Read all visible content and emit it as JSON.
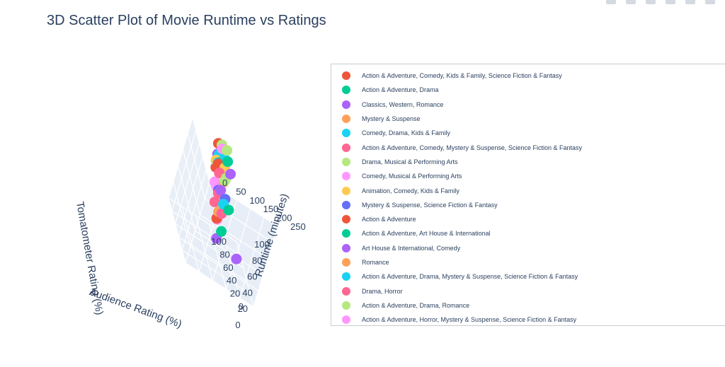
{
  "chart_data": {
    "type": "scatter",
    "subtype": "scatter3d",
    "title": "3D Scatter Plot of Movie Runtime vs Ratings",
    "axes": {
      "x": {
        "label": "Audience Rating (%)",
        "ticks": [
          "0",
          "20",
          "40",
          "60",
          "80",
          "100"
        ],
        "range": [
          0,
          100
        ]
      },
      "y": {
        "label": "Runtime (minutes)",
        "ticks": [
          "0",
          "50",
          "100",
          "150",
          "200",
          "250"
        ],
        "range": [
          0,
          250
        ]
      },
      "z": {
        "label": "Tomatometer Rating (%)",
        "ticks": [
          "0",
          "20",
          "40",
          "60",
          "80",
          "100"
        ],
        "range": [
          0,
          100
        ]
      }
    },
    "grid": true,
    "legend_position": "right",
    "series": [
      {
        "name": "Action & Adventure, Comedy, Kids & Family, Science Fiction & Fantasy",
        "color": "#EF553B"
      },
      {
        "name": "Action & Adventure, Drama",
        "color": "#00CC96"
      },
      {
        "name": "Classics, Western, Romance",
        "color": "#AB63FA"
      },
      {
        "name": "Mystery & Suspense",
        "color": "#FFA15A"
      },
      {
        "name": "Comedy, Drama, Kids & Family",
        "color": "#19D3F3"
      },
      {
        "name": "Action & Adventure, Comedy, Mystery & Suspense, Science Fiction & Fantasy",
        "color": "#FF6692"
      },
      {
        "name": "Drama, Musical & Performing Arts",
        "color": "#B6E880"
      },
      {
        "name": "Comedy, Musical & Performing Arts",
        "color": "#FF97FF"
      },
      {
        "name": "Animation, Comedy, Kids & Family",
        "color": "#FECB52"
      },
      {
        "name": "Mystery & Suspense, Science Fiction & Fantasy",
        "color": "#636EFA"
      },
      {
        "name": "Action & Adventure",
        "color": "#EF553B"
      },
      {
        "name": "Action & Adventure, Art House & International",
        "color": "#00CC96"
      },
      {
        "name": "Art House & International, Comedy",
        "color": "#AB63FA"
      },
      {
        "name": "Romance",
        "color": "#FFA15A"
      },
      {
        "name": "Action & Adventure, Drama, Mystery & Suspense, Science Fiction & Fantasy",
        "color": "#19D3F3"
      },
      {
        "name": "Drama, Horror",
        "color": "#FF6692"
      },
      {
        "name": "Action & Adventure, Drama, Romance",
        "color": "#B6E880"
      },
      {
        "name": "Action & Adventure, Horror, Mystery & Suspense, Science Fiction & Fantasy",
        "color": "#FF97FF"
      }
    ],
    "points": [
      {
        "x": 75,
        "y": 95,
        "z": 80,
        "s": 0
      },
      {
        "x": 80,
        "y": 110,
        "z": 85,
        "s": 1
      },
      {
        "x": 60,
        "y": 120,
        "z": 70,
        "s": 2
      },
      {
        "x": 65,
        "y": 100,
        "z": 60,
        "s": 3
      },
      {
        "x": 85,
        "y": 105,
        "z": 90,
        "s": 4
      },
      {
        "x": 55,
        "y": 90,
        "z": 50,
        "s": 5
      },
      {
        "x": 70,
        "y": 130,
        "z": 75,
        "s": 6
      },
      {
        "x": 90,
        "y": 115,
        "z": 95,
        "s": 7
      },
      {
        "x": 78,
        "y": 98,
        "z": 88,
        "s": 8
      },
      {
        "x": 62,
        "y": 125,
        "z": 55,
        "s": 9
      },
      {
        "x": 45,
        "y": 100,
        "z": 40,
        "s": 10
      },
      {
        "x": 82,
        "y": 140,
        "z": 92,
        "s": 11
      },
      {
        "x": 35,
        "y": 95,
        "z": 20,
        "s": 12
      },
      {
        "x": 50,
        "y": 105,
        "z": 45,
        "s": 13
      },
      {
        "x": 88,
        "y": 120,
        "z": 82,
        "s": 14
      },
      {
        "x": 58,
        "y": 110,
        "z": 65,
        "s": 15
      },
      {
        "x": 72,
        "y": 135,
        "z": 78,
        "s": 16
      },
      {
        "x": 66,
        "y": 92,
        "z": 68,
        "s": 17
      },
      {
        "x": 92,
        "y": 100,
        "z": 97,
        "s": 0
      },
      {
        "x": 40,
        "y": 115,
        "z": 30,
        "s": 1
      },
      {
        "x": 76,
        "y": 150,
        "z": 83,
        "s": 2
      },
      {
        "x": 84,
        "y": 88,
        "z": 72,
        "s": 3
      },
      {
        "x": 54,
        "y": 128,
        "z": 58,
        "s": 4
      },
      {
        "x": 68,
        "y": 118,
        "z": 86,
        "s": 5
      },
      {
        "x": 95,
        "y": 108,
        "z": 93,
        "s": 6
      },
      {
        "x": 47,
        "y": 97,
        "z": 35,
        "s": 7
      },
      {
        "x": 81,
        "y": 122,
        "z": 79,
        "s": 8
      },
      {
        "x": 63,
        "y": 104,
        "z": 62,
        "s": 9
      },
      {
        "x": 74,
        "y": 112,
        "z": 91,
        "s": 10
      },
      {
        "x": 57,
        "y": 138,
        "z": 48,
        "s": 11
      },
      {
        "x": 86,
        "y": 96,
        "z": 87,
        "s": 12
      },
      {
        "x": 69,
        "y": 126,
        "z": 73,
        "s": 13
      },
      {
        "x": 79,
        "y": 102,
        "z": 84,
        "s": 14
      },
      {
        "x": 52,
        "y": 113,
        "z": 42,
        "s": 15
      },
      {
        "x": 91,
        "y": 132,
        "z": 96,
        "s": 16
      },
      {
        "x": 64,
        "y": 99,
        "z": 66,
        "s": 17
      },
      {
        "x": 30,
        "y": 170,
        "z": 15,
        "s": 2
      }
    ]
  },
  "legend": {
    "items": [
      "Action & Adventure, Comedy, Kids & Family, Science Fiction & Fantasy",
      "Action & Adventure, Drama",
      "Classics, Western, Romance",
      "Mystery & Suspense",
      "Comedy, Drama, Kids & Family",
      "Action & Adventure, Comedy, Mystery & Suspense, Science Fiction & Fantasy",
      "Drama, Musical & Performing Arts",
      "Comedy, Musical & Performing Arts",
      "Animation, Comedy, Kids & Family",
      "Mystery & Suspense, Science Fiction & Fantasy",
      "Action & Adventure",
      "Action & Adventure, Art House & International",
      "Art House & International, Comedy",
      "Romance",
      "Action & Adventure, Drama, Mystery & Suspense, Science Fiction & Fantasy",
      "Drama, Horror",
      "Action & Adventure, Drama, Romance",
      "Action & Adventure, Horror, Mystery & Suspense, Science Fiction & Fantasy"
    ]
  },
  "modebar": {
    "icons": [
      "camera-icon",
      "zoom-icon",
      "pan-icon",
      "orbit-rotation-icon",
      "turntable-icon",
      "reset-camera-icon"
    ]
  }
}
